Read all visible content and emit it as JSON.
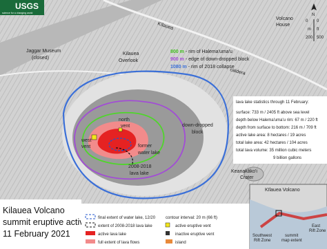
{
  "header": {
    "logo": "USGS",
    "tagline": "science for a changing world"
  },
  "places": {
    "kilauea_road": "Kīlauea",
    "volcano_house": [
      "Volcano",
      "House"
    ],
    "jaggar": [
      "Jaggar Museum",
      "(closed)"
    ],
    "overlook": [
      "Kilauea",
      "Overlook"
    ],
    "caldera": "caldera",
    "keanakakoi": [
      "Keanakāko'i",
      "Crater"
    ]
  },
  "rims": [
    {
      "elev": "800 m",
      "text": "- rim of Halema'uma'u"
    },
    {
      "elev": "900 m",
      "text": "- edge of down-dropped block"
    },
    {
      "elev": "1080 m",
      "text": "- rim of 2018 collapse"
    }
  ],
  "features": {
    "north_vent": [
      "north",
      "vent"
    ],
    "west_vent": [
      "west",
      "vent"
    ],
    "down_dropped": [
      "down-dropped",
      "block"
    ],
    "water_lake": [
      "former",
      "water lake"
    ],
    "old_lake": [
      "2008-2018",
      "lava lake"
    ]
  },
  "scale": {
    "north": "N",
    "m": [
      "0",
      "m",
      "200"
    ],
    "ft": [
      "0",
      "ft",
      "500"
    ]
  },
  "stats": [
    "lava lake statistics through 11 February:",
    "surface: 733 m / 2405 ft above sea level",
    "depth below Halema'uma'u rim: 67 m / 220 ft",
    "depth from surface to bottom: 216 m / 709 ft",
    "active lake area: 8 hectares / 19 acres",
    "total lake area: 42 hectares / 104 acres",
    "total lava volume: 35 million cubic meters",
    "9 billion gallons"
  ],
  "title": [
    "Kilauea Volcano",
    "summit eruptive activity",
    "11 February 2021"
  ],
  "legend": [
    "final extent of water lake, 12/20",
    "extent of 2008-2018 lava lake",
    "active lava lake",
    "full extent of lava flows",
    "contour interval: 20 m (66 ft)",
    "active eruptive vent",
    "inactive eruptive vent",
    "island"
  ],
  "inset": {
    "title": "Kīlauea Volcano",
    "east": [
      "East",
      "Rift Zone"
    ],
    "southwest": [
      "Southwest",
      "Rift Zone"
    ],
    "extent": [
      "summit",
      "map extent"
    ]
  }
}
